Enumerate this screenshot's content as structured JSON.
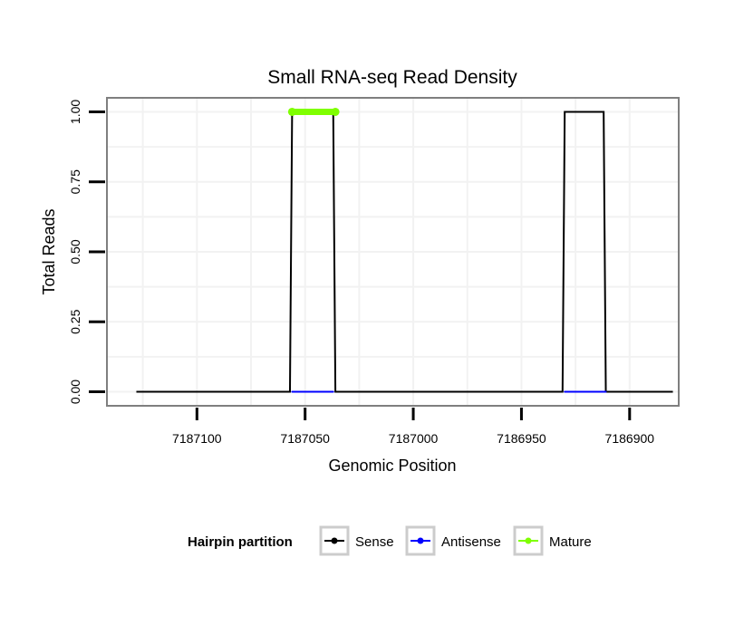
{
  "chart_data": {
    "type": "line",
    "title": "Small RNA-seq Read Density",
    "xlabel": "Genomic Position",
    "ylabel": "Total Reads",
    "x_reversed": true,
    "xlim": [
      7187141.6,
      7186877.3
    ],
    "ylim": [
      -0.05,
      1.05
    ],
    "x_ticks": [
      7187100,
      7187050,
      7187000,
      7186950,
      7186900
    ],
    "x_tick_labels": [
      "7187100",
      "7187050",
      "7187000",
      "7186950",
      "7186900"
    ],
    "y_ticks": [
      0,
      0.25,
      0.5,
      0.75,
      1
    ],
    "y_tick_labels": [
      "0.00",
      "0.25",
      "0.50",
      "0.75",
      "1.00"
    ],
    "grid": true,
    "legend": {
      "title": "Hairpin partition",
      "position": "bottom",
      "entries": [
        {
          "label": "Sense",
          "color": "#000000"
        },
        {
          "label": "Antisense",
          "color": "#0000ff"
        },
        {
          "label": "Mature",
          "color": "#7fff00"
        }
      ]
    },
    "series": [
      {
        "name": "Sense",
        "color": "#000000",
        "x": [
          7187128,
          7187057,
          7187056,
          7187037,
          7187036,
          7186931,
          7186930,
          7186912,
          7186911,
          7186880
        ],
        "y": [
          0,
          0,
          1,
          1,
          0,
          0,
          1,
          1,
          0,
          0
        ]
      },
      {
        "name": "Antisense",
        "color": "#0000ff",
        "segments": [
          {
            "x": [
              7187056,
              7187037
            ],
            "y": [
              0,
              0
            ]
          },
          {
            "x": [
              7186930,
              7186911
            ],
            "y": [
              0,
              0
            ]
          }
        ]
      },
      {
        "name": "Mature",
        "color": "#7fff00",
        "segments": [
          {
            "x": [
              7187056,
              7187036
            ],
            "y": [
              1,
              1
            ]
          }
        ]
      }
    ]
  }
}
